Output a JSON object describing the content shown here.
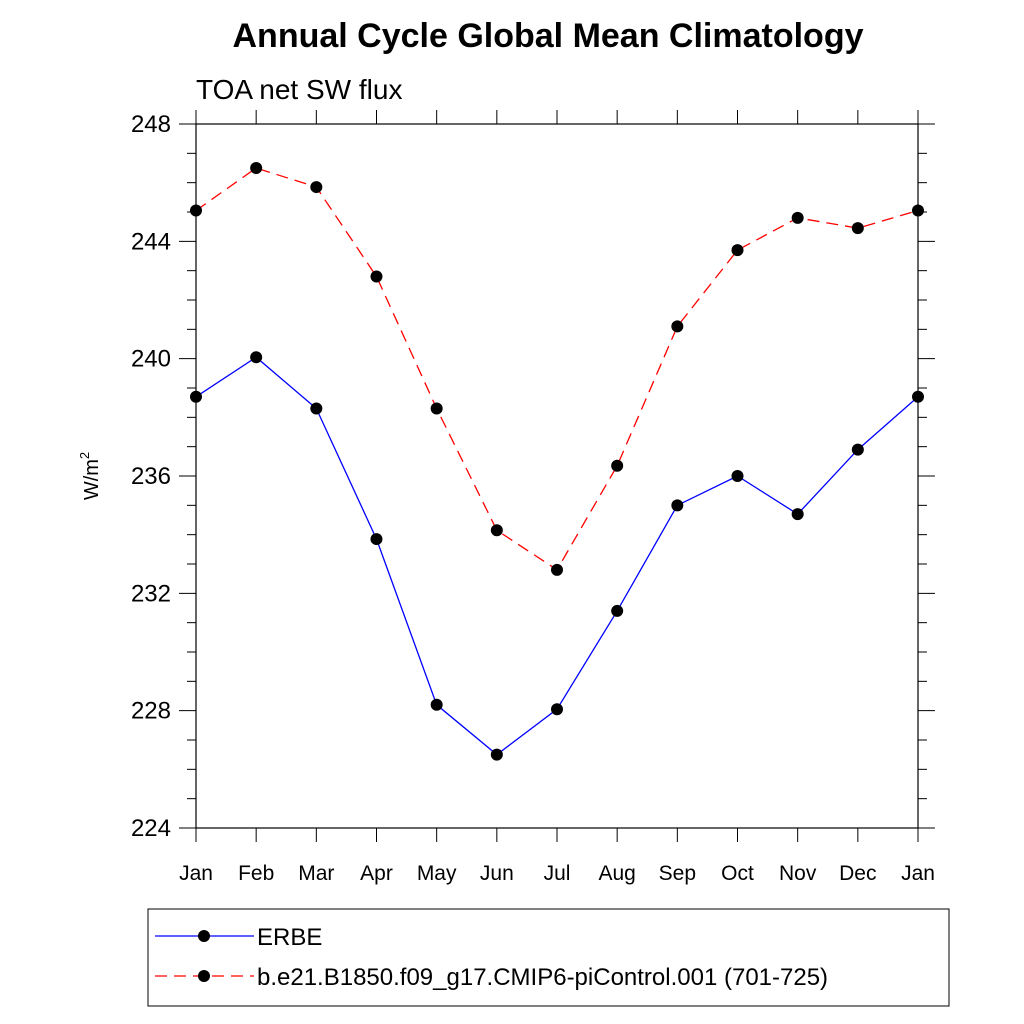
{
  "chart_data": {
    "type": "line",
    "title": "Annual Cycle Global Mean Climatology",
    "subtitle": "TOA net SW flux",
    "xlabel": "",
    "ylabel_base": "W/m",
    "ylabel_sup": "2",
    "categories": [
      "Jan",
      "Feb",
      "Mar",
      "Apr",
      "May",
      "Jun",
      "Jul",
      "Aug",
      "Sep",
      "Oct",
      "Nov",
      "Dec",
      "Jan"
    ],
    "ylim": [
      224,
      248
    ],
    "yticks": [
      "224",
      "228",
      "232",
      "236",
      "240",
      "244",
      "248"
    ],
    "grid": false,
    "legend_position": "bottom",
    "series": [
      {
        "name": "ERBE",
        "color": "#0000ff",
        "line_style": "solid",
        "marker": "filled-circle",
        "values": [
          238.7,
          240.05,
          238.3,
          233.85,
          228.2,
          226.5,
          228.05,
          231.4,
          235.0,
          236.0,
          234.7,
          236.9,
          238.7
        ]
      },
      {
        "name": "b.e21.B1850.f09_g17.CMIP6-piControl.001 (701-725)",
        "color": "#ff0000",
        "line_style": "dashed",
        "marker": "filled-circle",
        "values": [
          245.05,
          246.5,
          245.85,
          242.8,
          238.3,
          234.15,
          232.8,
          236.35,
          241.1,
          243.7,
          244.8,
          244.45,
          245.05
        ]
      }
    ]
  }
}
